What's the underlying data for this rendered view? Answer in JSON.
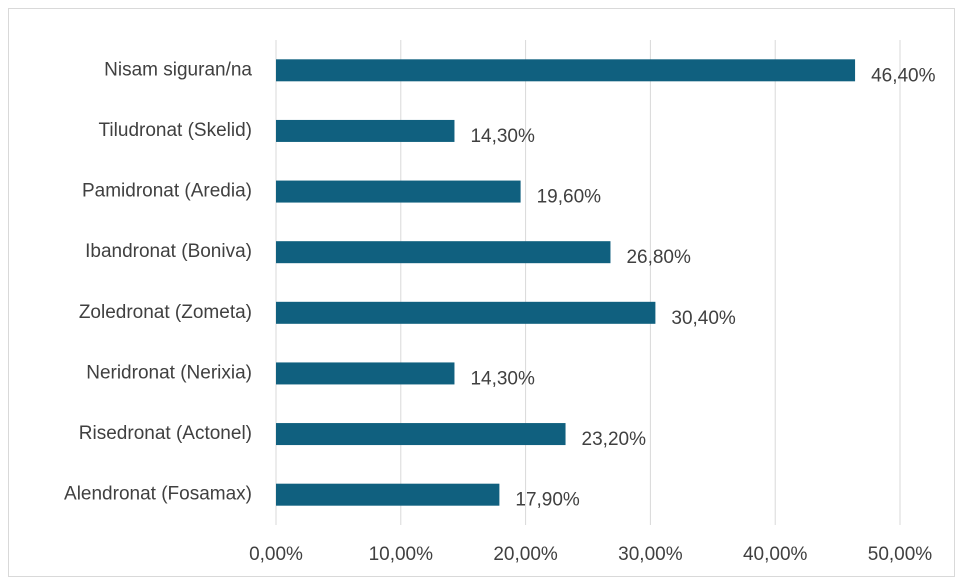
{
  "chart_data": {
    "type": "bar",
    "orientation": "horizontal",
    "categories": [
      "Nisam siguran/na",
      "Tiludronat (Skelid)",
      "Pamidronat (Aredia)",
      "Ibandronat (Boniva)",
      "Zoledronat (Zometa)",
      "Neridronat (Nerixia)",
      "Risedronat (Actonel)",
      "Alendronat (Fosamax)"
    ],
    "values": [
      46.4,
      14.3,
      19.6,
      26.8,
      30.4,
      14.3,
      23.2,
      17.9
    ],
    "value_labels": [
      "46,40%",
      "14,30%",
      "19,60%",
      "26,80%",
      "30,40%",
      "14,30%",
      "23,20%",
      "17,90%"
    ],
    "color": "#10607f",
    "xlim": [
      0,
      50
    ],
    "xticks": [
      {
        "value": 0,
        "label": "0,00%"
      },
      {
        "value": 10,
        "label": "10,00%"
      },
      {
        "value": 20,
        "label": "20,00%"
      },
      {
        "value": 30,
        "label": "30,00%"
      },
      {
        "value": 40,
        "label": "40,00%"
      },
      {
        "value": 50,
        "label": "50,00%"
      }
    ],
    "grid": true
  }
}
